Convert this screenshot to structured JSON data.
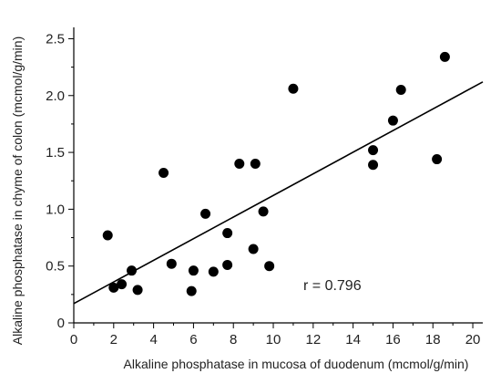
{
  "chart_data": {
    "type": "scatter",
    "xlabel": "Alkaline phosphatase in mucosa of duodenum (mcmol/g/min)",
    "ylabel": "Alkaline phosphatase in chyme of colon (mcmol/g/min)",
    "xlim": [
      0,
      20.5
    ],
    "ylim": [
      0,
      2.6
    ],
    "xticks": [
      0,
      2,
      4,
      6,
      8,
      10,
      12,
      14,
      16,
      18,
      20
    ],
    "yticks": [
      0,
      0.5,
      1.0,
      1.5,
      2.0,
      2.5
    ],
    "xtick_labels": [
      "0",
      "2",
      "4",
      "6",
      "8",
      "10",
      "12",
      "14",
      "16",
      "18",
      "20"
    ],
    "ytick_labels": [
      "0",
      "0.5",
      "1.0",
      "1.5",
      "2.0",
      "2.5"
    ],
    "grid": false,
    "series": [
      {
        "points": [
          {
            "x": 1.7,
            "y": 0.77
          },
          {
            "x": 2.0,
            "y": 0.31
          },
          {
            "x": 2.4,
            "y": 0.34
          },
          {
            "x": 2.9,
            "y": 0.46
          },
          {
            "x": 3.2,
            "y": 0.29
          },
          {
            "x": 4.5,
            "y": 1.32
          },
          {
            "x": 4.9,
            "y": 0.52
          },
          {
            "x": 5.9,
            "y": 0.28
          },
          {
            "x": 6.0,
            "y": 0.46
          },
          {
            "x": 6.6,
            "y": 0.96
          },
          {
            "x": 7.0,
            "y": 0.45
          },
          {
            "x": 7.7,
            "y": 0.79
          },
          {
            "x": 7.7,
            "y": 0.51
          },
          {
            "x": 8.3,
            "y": 1.4
          },
          {
            "x": 9.0,
            "y": 0.65
          },
          {
            "x": 9.1,
            "y": 1.4
          },
          {
            "x": 9.5,
            "y": 0.98
          },
          {
            "x": 9.8,
            "y": 0.5
          },
          {
            "x": 11.0,
            "y": 2.06
          },
          {
            "x": 15.0,
            "y": 1.52
          },
          {
            "x": 15.0,
            "y": 1.39
          },
          {
            "x": 16.0,
            "y": 1.78
          },
          {
            "x": 16.4,
            "y": 2.05
          },
          {
            "x": 18.2,
            "y": 1.44
          },
          {
            "x": 18.6,
            "y": 2.34
          }
        ]
      }
    ],
    "regression_line": {
      "x": [
        0,
        20.5
      ],
      "y": [
        0.17,
        2.12
      ]
    },
    "annotation": "r = 0.796"
  }
}
